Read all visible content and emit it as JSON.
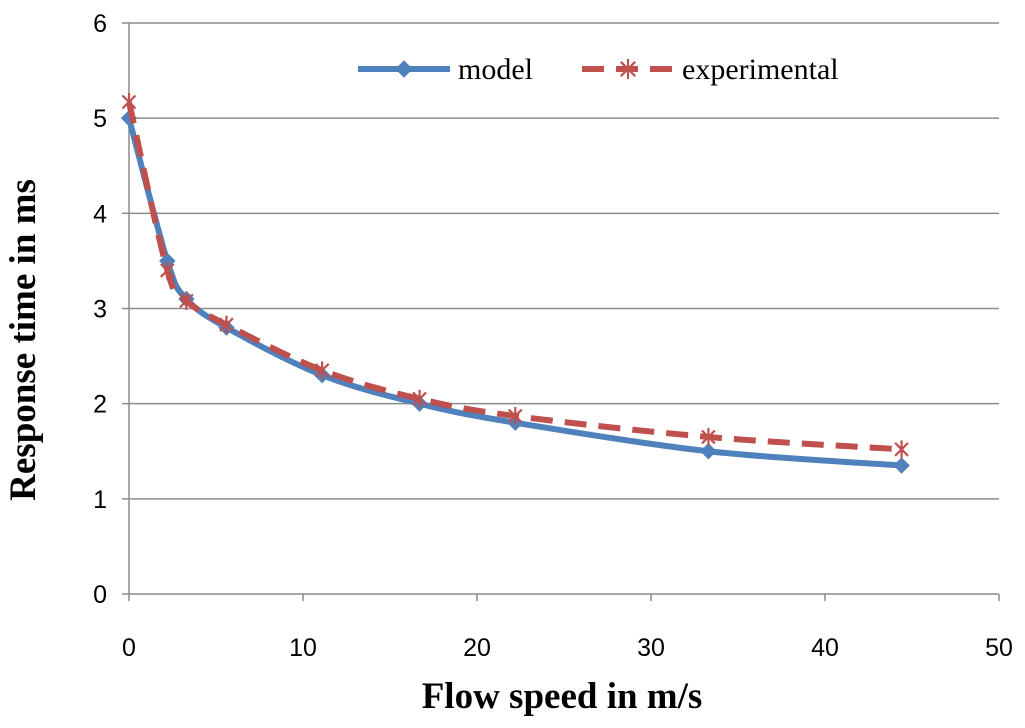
{
  "chart_data": {
    "type": "line",
    "title": "",
    "xlabel": "Flow speed in m/s",
    "ylabel": "Response time in ms",
    "xlim": [
      0,
      50
    ],
    "ylim": [
      0,
      6
    ],
    "xticks": [
      "0",
      "10",
      "20",
      "30",
      "40",
      "50"
    ],
    "yticks": [
      "0",
      "1",
      "2",
      "3",
      "4",
      "5",
      "6"
    ],
    "grid": "horizontal",
    "legend_position": "top-right",
    "series": [
      {
        "name": "model",
        "color": "#4f81bd",
        "style": "solid",
        "marker": "diamond",
        "x": [
          0,
          2.2,
          3.3,
          5.6,
          11.1,
          16.7,
          22.2,
          33.3,
          44.4
        ],
        "y": [
          5.0,
          3.5,
          3.1,
          2.8,
          2.3,
          2.0,
          1.8,
          1.5,
          1.35
        ]
      },
      {
        "name": "experimental",
        "color": "#c0504d",
        "style": "dashed",
        "marker": "star",
        "x": [
          0,
          2.2,
          3.3,
          5.6,
          11.1,
          16.7,
          22.2,
          33.3,
          44.4
        ],
        "y": [
          5.17,
          3.4,
          3.08,
          2.83,
          2.35,
          2.05,
          1.87,
          1.65,
          1.52
        ]
      }
    ]
  }
}
